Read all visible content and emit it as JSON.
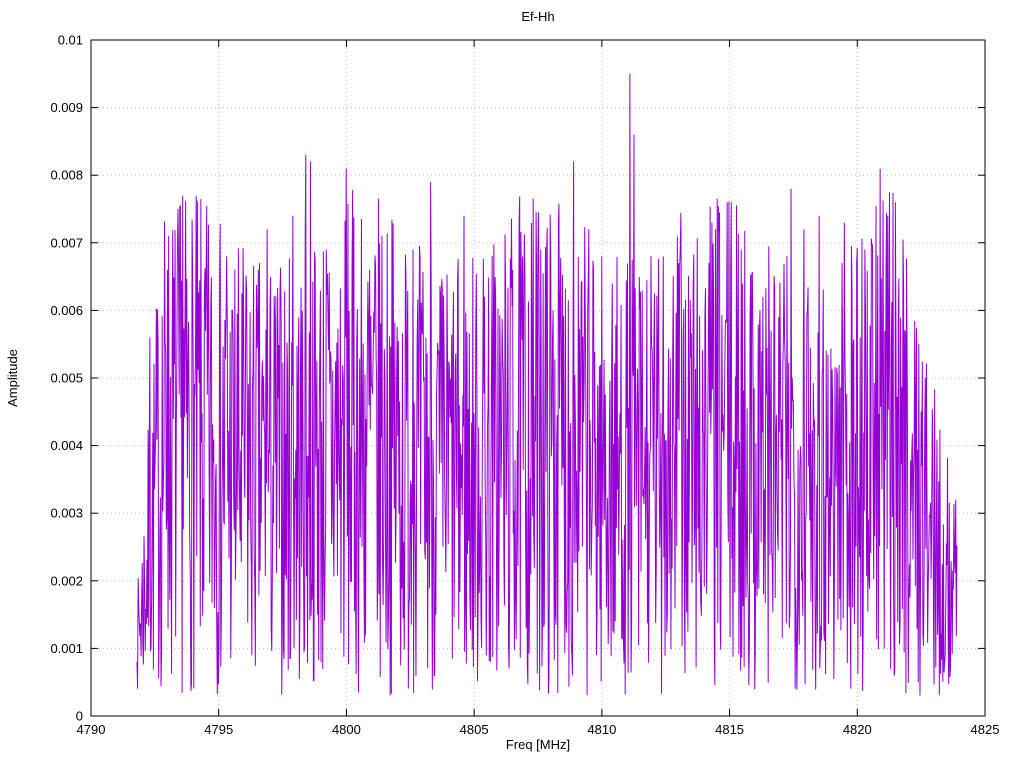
{
  "page": {
    "background": "#ffffff"
  },
  "chart_data": {
    "type": "line",
    "title": "Ef-Hh",
    "xlabel": "Freq [MHz]",
    "ylabel": "Amplitude",
    "xlim": [
      4790,
      4825
    ],
    "ylim": [
      0,
      0.01
    ],
    "xticks": [
      4790,
      4795,
      4800,
      4805,
      4810,
      4815,
      4820,
      4825
    ],
    "xtick_labels": [
      "4790",
      "4795",
      "4800",
      "4805",
      "4810",
      "4815",
      "4820",
      "4825"
    ],
    "yticks": [
      0,
      0.001,
      0.002,
      0.003,
      0.004,
      0.005,
      0.006,
      0.007,
      0.008,
      0.009,
      0.01
    ],
    "ytick_labels": [
      "0",
      "0.001",
      "0.002",
      "0.003",
      "0.004",
      "0.005",
      "0.006",
      "0.007",
      "0.008",
      "0.009",
      "0.01"
    ],
    "grid": "dotted",
    "grid_color": "#b9b9b9",
    "legend": "none",
    "line_color": "#9400d3",
    "series_name": "Ef-Hh",
    "data_x_range": [
      4791.8,
      4823.9
    ],
    "noise_band": [
      0.0003,
      0.0073
    ],
    "right_taper_start": 4821.7,
    "right_taper_max": 0.0032,
    "left_ramp_end": 4792.8,
    "peaks": [
      {
        "x": 4792.3,
        "y": 0.0056
      },
      {
        "x": 4793.0,
        "y": 0.0066
      },
      {
        "x": 4793.6,
        "y": 0.0077
      },
      {
        "x": 4794.5,
        "y": 0.0066
      },
      {
        "x": 4795.3,
        "y": 0.0068
      },
      {
        "x": 4796.1,
        "y": 0.0063
      },
      {
        "x": 4796.9,
        "y": 0.0072
      },
      {
        "x": 4797.9,
        "y": 0.0074
      },
      {
        "x": 4798.4,
        "y": 0.0083
      },
      {
        "x": 4798.6,
        "y": 0.0082
      },
      {
        "x": 4799.2,
        "y": 0.0069
      },
      {
        "x": 4800.0,
        "y": 0.0081
      },
      {
        "x": 4800.9,
        "y": 0.0066
      },
      {
        "x": 4801.4,
        "y": 0.0071
      },
      {
        "x": 4802.6,
        "y": 0.0069
      },
      {
        "x": 4803.3,
        "y": 0.0079
      },
      {
        "x": 4804.6,
        "y": 0.0074
      },
      {
        "x": 4805.4,
        "y": 0.0062
      },
      {
        "x": 4806.5,
        "y": 0.0066
      },
      {
        "x": 4807.6,
        "y": 0.0069
      },
      {
        "x": 4808.3,
        "y": 0.0073
      },
      {
        "x": 4808.9,
        "y": 0.0082
      },
      {
        "x": 4809.5,
        "y": 0.0072
      },
      {
        "x": 4810.4,
        "y": 0.0064
      },
      {
        "x": 4811.1,
        "y": 0.0095
      },
      {
        "x": 4811.25,
        "y": 0.0086
      },
      {
        "x": 4812.4,
        "y": 0.0068
      },
      {
        "x": 4813.0,
        "y": 0.0067
      },
      {
        "x": 4814.2,
        "y": 0.0067
      },
      {
        "x": 4814.9,
        "y": 0.0076
      },
      {
        "x": 4815.5,
        "y": 0.0064
      },
      {
        "x": 4816.2,
        "y": 0.006
      },
      {
        "x": 4817.4,
        "y": 0.0078
      },
      {
        "x": 4817.9,
        "y": 0.0072
      },
      {
        "x": 4818.5,
        "y": 0.0074
      },
      {
        "x": 4819.5,
        "y": 0.0073
      },
      {
        "x": 4820.3,
        "y": 0.0069
      },
      {
        "x": 4820.9,
        "y": 0.0081
      },
      {
        "x": 4821.2,
        "y": 0.0074
      },
      {
        "x": 4821.5,
        "y": 0.0076
      }
    ],
    "generation": {
      "seed": 7,
      "num_points": 1400
    }
  }
}
